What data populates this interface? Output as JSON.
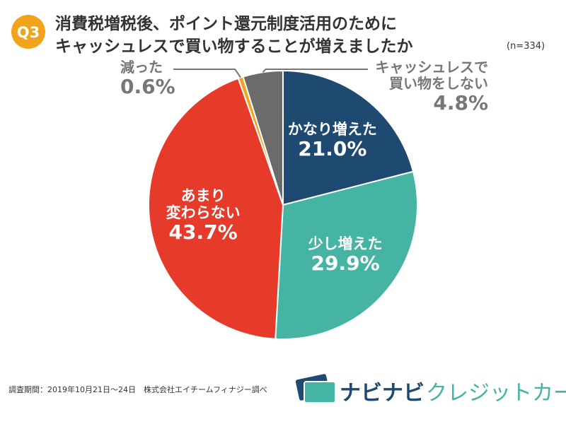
{
  "chart_data": {
    "type": "pie",
    "badge": "Q3",
    "title": [
      "消費税増税後、ポイント還元制度活用のために",
      "キャッシュレスで買い物することが増えましたか"
    ],
    "note": "(n=334)",
    "categories": [
      "かなり増えた",
      "少し増えた",
      "あまり\n変わらない",
      "減った",
      "キャッシュレスで\n買い物をしない"
    ],
    "values": [
      21.0,
      29.9,
      43.7,
      0.6,
      4.8
    ],
    "value_labels": [
      "21.0%",
      "29.9%",
      "43.7%",
      "0.6%",
      "4.8%"
    ],
    "colors": [
      "#1e4a72",
      "#45b4a2",
      "#e63b2a",
      "#f0a31b",
      "#6b6b6b"
    ],
    "source": "調査期間：2019年10月21日〜24日　株式会社エイチームフィナジー調べ",
    "logo": [
      "ナビナビ",
      "クレジットカード"
    ]
  }
}
